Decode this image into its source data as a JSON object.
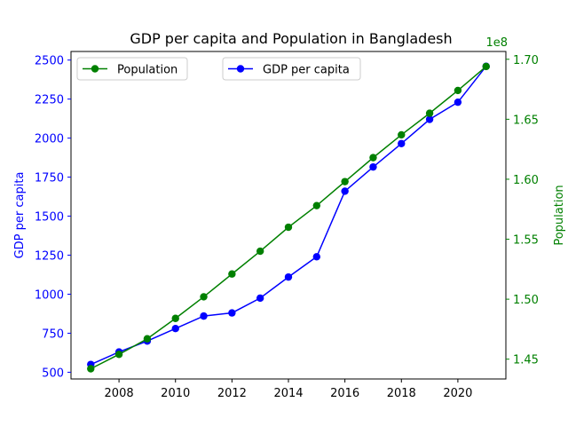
{
  "chart_data": {
    "type": "line",
    "title": "GDP per capita and Population in Bangladesh",
    "x": [
      2007,
      2008,
      2009,
      2010,
      2011,
      2012,
      2013,
      2014,
      2015,
      2016,
      2017,
      2018,
      2019,
      2020,
      2021
    ],
    "xticks": [
      2008,
      2010,
      2012,
      2014,
      2016,
      2018,
      2020
    ],
    "xlim": [
      2006.3,
      2021.7
    ],
    "grid": false,
    "left_axis": {
      "label": "GDP per capita",
      "color": "#0000ff",
      "ylim": [
        457,
        2555
      ],
      "ticks": [
        500,
        750,
        1000,
        1250,
        1500,
        1750,
        2000,
        2250,
        2500
      ]
    },
    "right_axis": {
      "label": "Population",
      "color": "#008000",
      "ylim": [
        1.4335,
        1.7065
      ],
      "ticks": [
        1.45,
        1.5,
        1.55,
        1.6,
        1.65,
        1.7
      ],
      "tick_labels": [
        "1.45",
        "1.50",
        "1.55",
        "1.60",
        "1.65",
        "1.70"
      ],
      "offset_text": "1e8"
    },
    "series": [
      {
        "name": "GDP per capita",
        "axis": "left",
        "color": "#0000ff",
        "marker": "circle",
        "values": [
          550,
          630,
          700,
          780,
          860,
          880,
          975,
          1110,
          1240,
          1660,
          1815,
          1965,
          2120,
          2230,
          2460
        ]
      },
      {
        "name": "Population",
        "axis": "right",
        "color": "#008000",
        "marker": "circle",
        "values": [
          1.442,
          1.454,
          1.467,
          1.484,
          1.502,
          1.521,
          1.54,
          1.56,
          1.578,
          1.598,
          1.618,
          1.637,
          1.655,
          1.674,
          1.694
        ]
      }
    ],
    "legends": [
      {
        "series": "Population",
        "placement": "upper-left"
      },
      {
        "series": "GDP per capita",
        "placement": "upper-center"
      }
    ]
  }
}
